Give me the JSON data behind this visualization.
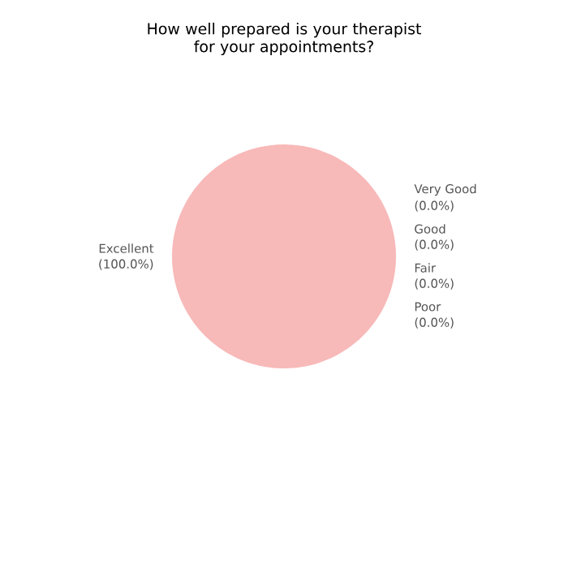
{
  "chart_data": {
    "type": "pie",
    "title": "How well prepared is your therapist\nfor your appointments?",
    "categories": [
      "Excellent",
      "Very Good",
      "Good",
      "Fair",
      "Poor"
    ],
    "values": [
      100,
      0,
      0,
      0,
      0
    ],
    "value_labels": [
      "(100.0%)",
      "(0.0%)",
      "(0.0%)",
      "(0.0%)",
      "(0.0%)"
    ],
    "colors": [
      "#f8b9b9",
      "#f5c99b",
      "#f3e3a0",
      "#bfe0b0",
      "#b0d0ea"
    ]
  }
}
